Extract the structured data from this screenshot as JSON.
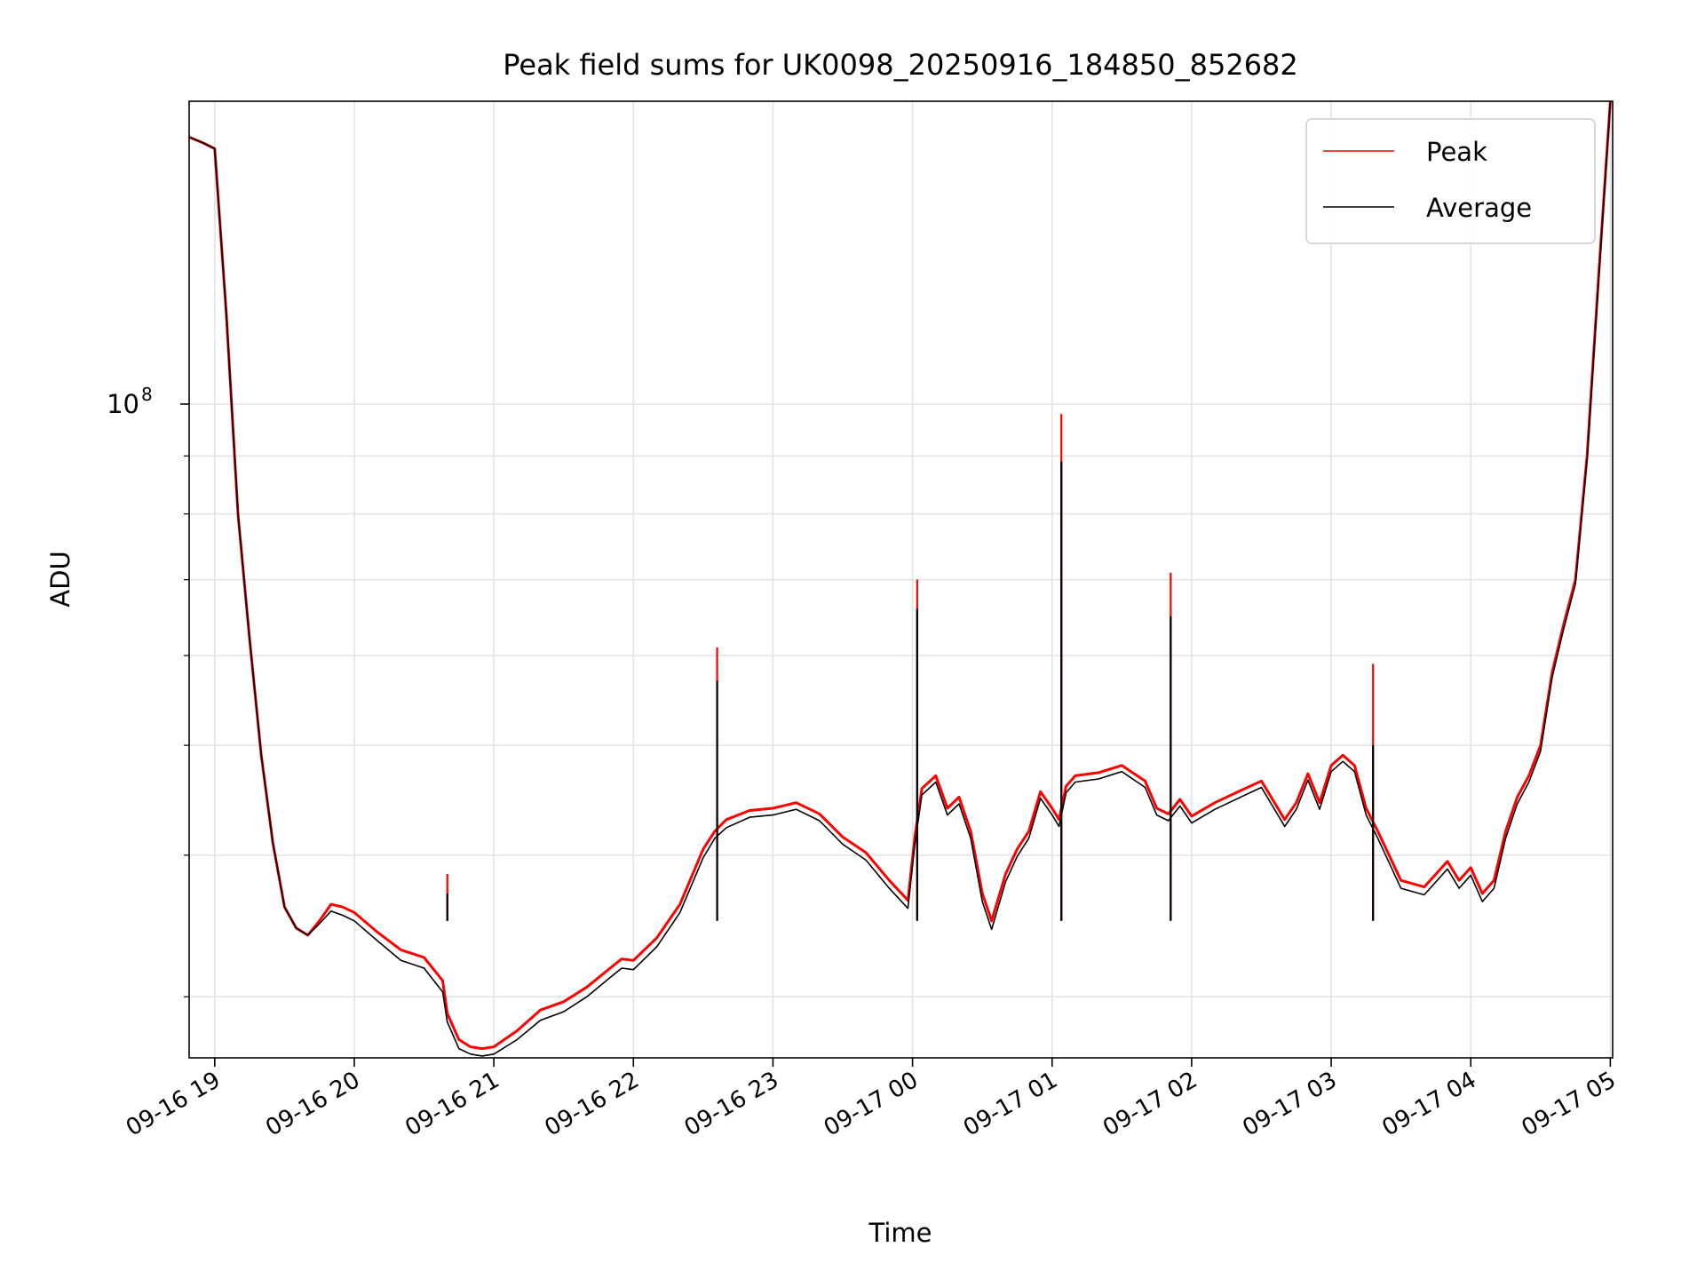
{
  "chart_data": {
    "type": "line",
    "title": "Peak field sums for UK0098_20250916_184850_852682",
    "xlabel": "Time",
    "ylabel": "ADU",
    "y_scale": "log",
    "grid": true,
    "legend_position": "top-right",
    "xlim": [
      "2025-09-16 18:49",
      "2025-09-17 05:01"
    ],
    "ylim": [
      26500000,
      185000000
    ],
    "x_ticks": [
      {
        "value": "2025-09-16 19:00",
        "label": "09-16 19"
      },
      {
        "value": "2025-09-16 20:00",
        "label": "09-16 20"
      },
      {
        "value": "2025-09-16 21:00",
        "label": "09-16 21"
      },
      {
        "value": "2025-09-16 22:00",
        "label": "09-16 22"
      },
      {
        "value": "2025-09-16 23:00",
        "label": "09-16 23"
      },
      {
        "value": "2025-09-17 00:00",
        "label": "09-17 00"
      },
      {
        "value": "2025-09-17 01:00",
        "label": "09-17 01"
      },
      {
        "value": "2025-09-17 02:00",
        "label": "09-17 02"
      },
      {
        "value": "2025-09-17 03:00",
        "label": "09-17 03"
      },
      {
        "value": "2025-09-17 04:00",
        "label": "09-17 04"
      },
      {
        "value": "2025-09-17 05:00",
        "label": "09-17 05"
      }
    ],
    "y_major_ticks": [
      {
        "value": 100000000,
        "label_base": "10",
        "label_exp": "8"
      }
    ],
    "y_minor_ticks": [
      30000000,
      40000000,
      50000000,
      60000000,
      70000000,
      80000000,
      90000000
    ],
    "series": [
      {
        "name": "Peak",
        "color": "#ff0000",
        "x": [
          "2025-09-16 18:49",
          "2025-09-16 18:55",
          "2025-09-16 19:00",
          "2025-09-16 19:05",
          "2025-09-16 19:10",
          "2025-09-16 19:15",
          "2025-09-16 19:20",
          "2025-09-16 19:25",
          "2025-09-16 19:30",
          "2025-09-16 19:35",
          "2025-09-16 19:40",
          "2025-09-16 19:45",
          "2025-09-16 19:50",
          "2025-09-16 19:55",
          "2025-09-16 20:00",
          "2025-09-16 20:10",
          "2025-09-16 20:20",
          "2025-09-16 20:30",
          "2025-09-16 20:38",
          "2025-09-16 20:40",
          "2025-09-16 20:45",
          "2025-09-16 20:50",
          "2025-09-16 20:55",
          "2025-09-16 21:00",
          "2025-09-16 21:10",
          "2025-09-16 21:20",
          "2025-09-16 21:30",
          "2025-09-16 21:40",
          "2025-09-16 21:50",
          "2025-09-16 21:55",
          "2025-09-16 22:00",
          "2025-09-16 22:10",
          "2025-09-16 22:20",
          "2025-09-16 22:30",
          "2025-09-16 22:35",
          "2025-09-16 22:40",
          "2025-09-16 22:50",
          "2025-09-16 23:00",
          "2025-09-16 23:10",
          "2025-09-16 23:20",
          "2025-09-16 23:30",
          "2025-09-16 23:40",
          "2025-09-16 23:50",
          "2025-09-16 23:58",
          "2025-09-17 00:01",
          "2025-09-17 00:04",
          "2025-09-17 00:10",
          "2025-09-17 00:15",
          "2025-09-17 00:20",
          "2025-09-17 00:25",
          "2025-09-17 00:30",
          "2025-09-17 00:34",
          "2025-09-17 00:40",
          "2025-09-17 00:45",
          "2025-09-17 00:50",
          "2025-09-17 00:55",
          "2025-09-17 01:00",
          "2025-09-17 01:03",
          "2025-09-17 01:06",
          "2025-09-17 01:10",
          "2025-09-17 01:20",
          "2025-09-17 01:30",
          "2025-09-17 01:40",
          "2025-09-17 01:45",
          "2025-09-17 01:50",
          "2025-09-17 01:55",
          "2025-09-17 02:00",
          "2025-09-17 02:10",
          "2025-09-17 02:20",
          "2025-09-17 02:30",
          "2025-09-17 02:40",
          "2025-09-17 02:45",
          "2025-09-17 02:50",
          "2025-09-17 02:55",
          "2025-09-17 03:00",
          "2025-09-17 03:05",
          "2025-09-17 03:10",
          "2025-09-17 03:15",
          "2025-09-17 03:20",
          "2025-09-17 03:30",
          "2025-09-17 03:40",
          "2025-09-17 03:50",
          "2025-09-17 03:55",
          "2025-09-17 04:00",
          "2025-09-17 04:05",
          "2025-09-17 04:10",
          "2025-09-17 04:15",
          "2025-09-17 04:20",
          "2025-09-17 04:25",
          "2025-09-17 04:30",
          "2025-09-17 04:35",
          "2025-09-17 04:40",
          "2025-09-17 04:45",
          "2025-09-17 04:50",
          "2025-09-17 04:55",
          "2025-09-17 05:00"
        ],
        "y": [
          172000000,
          170000000,
          168000000,
          120000000,
          80000000,
          62000000,
          49000000,
          41000000,
          36000000,
          34500000,
          34000000,
          35000000,
          36200000,
          36000000,
          35600000,
          34200000,
          33000000,
          32500000,
          31000000,
          29000000,
          27500000,
          27100000,
          27000000,
          27100000,
          28000000,
          29200000,
          29700000,
          30600000,
          31800000,
          32400000,
          32300000,
          33800000,
          36200000,
          40500000,
          42000000,
          43000000,
          43800000,
          44000000,
          44500000,
          43500000,
          41500000,
          40200000,
          38000000,
          36500000,
          41500000,
          45800000,
          47000000,
          44000000,
          45000000,
          42000000,
          37000000,
          35000000,
          38500000,
          40500000,
          42000000,
          45500000,
          44000000,
          43000000,
          46000000,
          47000000,
          47300000,
          48000000,
          46500000,
          44000000,
          43500000,
          44800000,
          43300000,
          44500000,
          45500000,
          46500000,
          43000000,
          44500000,
          47200000,
          44500000,
          48000000,
          49000000,
          48000000,
          44000000,
          42000000,
          38000000,
          37500000,
          39500000,
          38000000,
          39000000,
          37000000,
          38000000,
          42000000,
          45000000,
          47000000,
          50000000,
          58000000,
          64000000,
          70000000,
          90000000,
          130000000,
          185000000
        ]
      },
      {
        "name": "Average",
        "color": "#000000",
        "x": [
          "2025-09-16 18:49",
          "2025-09-16 18:55",
          "2025-09-16 19:00",
          "2025-09-16 19:05",
          "2025-09-16 19:10",
          "2025-09-16 19:15",
          "2025-09-16 19:20",
          "2025-09-16 19:25",
          "2025-09-16 19:30",
          "2025-09-16 19:35",
          "2025-09-16 19:40",
          "2025-09-16 19:45",
          "2025-09-16 19:50",
          "2025-09-16 19:55",
          "2025-09-16 20:00",
          "2025-09-16 20:10",
          "2025-09-16 20:20",
          "2025-09-16 20:30",
          "2025-09-16 20:38",
          "2025-09-16 20:40",
          "2025-09-16 20:45",
          "2025-09-16 20:50",
          "2025-09-16 20:55",
          "2025-09-16 21:00",
          "2025-09-16 21:10",
          "2025-09-16 21:20",
          "2025-09-16 21:30",
          "2025-09-16 21:40",
          "2025-09-16 21:50",
          "2025-09-16 21:55",
          "2025-09-16 22:00",
          "2025-09-16 22:10",
          "2025-09-16 22:20",
          "2025-09-16 22:30",
          "2025-09-16 22:35",
          "2025-09-16 22:40",
          "2025-09-16 22:50",
          "2025-09-16 23:00",
          "2025-09-16 23:10",
          "2025-09-16 23:20",
          "2025-09-16 23:30",
          "2025-09-16 23:40",
          "2025-09-16 23:50",
          "2025-09-16 23:58",
          "2025-09-17 00:01",
          "2025-09-17 00:04",
          "2025-09-17 00:10",
          "2025-09-17 00:15",
          "2025-09-17 00:20",
          "2025-09-17 00:25",
          "2025-09-17 00:30",
          "2025-09-17 00:34",
          "2025-09-17 00:40",
          "2025-09-17 00:45",
          "2025-09-17 00:50",
          "2025-09-17 00:55",
          "2025-09-17 01:00",
          "2025-09-17 01:03",
          "2025-09-17 01:06",
          "2025-09-17 01:10",
          "2025-09-17 01:20",
          "2025-09-17 01:30",
          "2025-09-17 01:40",
          "2025-09-17 01:45",
          "2025-09-17 01:50",
          "2025-09-17 01:55",
          "2025-09-17 02:00",
          "2025-09-17 02:10",
          "2025-09-17 02:20",
          "2025-09-17 02:30",
          "2025-09-17 02:40",
          "2025-09-17 02:45",
          "2025-09-17 02:50",
          "2025-09-17 02:55",
          "2025-09-17 03:00",
          "2025-09-17 03:05",
          "2025-09-17 03:10",
          "2025-09-17 03:15",
          "2025-09-17 03:20",
          "2025-09-17 03:30",
          "2025-09-17 03:40",
          "2025-09-17 03:50",
          "2025-09-17 03:55",
          "2025-09-17 04:00",
          "2025-09-17 04:05",
          "2025-09-17 04:10",
          "2025-09-17 04:15",
          "2025-09-17 04:20",
          "2025-09-17 04:25",
          "2025-09-17 04:30",
          "2025-09-17 04:35",
          "2025-09-17 04:40",
          "2025-09-17 04:45",
          "2025-09-17 04:50",
          "2025-09-17 04:55",
          "2025-09-17 05:00"
        ],
        "y": [
          172000000,
          170000000,
          168000000,
          120000000,
          80000000,
          62000000,
          49000000,
          41000000,
          36000000,
          34500000,
          34000000,
          34800000,
          35700000,
          35400000,
          35000000,
          33600000,
          32300000,
          31800000,
          30300000,
          28500000,
          27000000,
          26700000,
          26600000,
          26700000,
          27500000,
          28600000,
          29100000,
          30000000,
          31200000,
          31800000,
          31700000,
          33200000,
          35600000,
          39800000,
          41400000,
          42300000,
          43200000,
          43400000,
          43900000,
          42900000,
          40900000,
          39600000,
          37400000,
          35900000,
          40900000,
          45200000,
          46400000,
          43400000,
          44400000,
          41400000,
          36400000,
          34400000,
          37900000,
          39900000,
          41400000,
          44900000,
          43400000,
          42400000,
          45400000,
          46400000,
          46700000,
          47400000,
          45900000,
          43400000,
          42900000,
          44200000,
          42700000,
          43900000,
          44900000,
          45900000,
          42400000,
          43900000,
          46600000,
          43900000,
          47400000,
          48400000,
          47400000,
          43400000,
          41400000,
          37400000,
          36900000,
          38900000,
          37400000,
          38400000,
          36400000,
          37400000,
          41400000,
          44400000,
          46400000,
          49400000,
          57400000,
          63400000,
          69400000,
          89400000,
          129000000,
          185000000
        ]
      }
    ],
    "spikes": [
      {
        "time": "2025-09-16 20:40",
        "peak": 38500000,
        "average": 37000000
      },
      {
        "time": "2025-09-16 22:36",
        "peak": 61000000,
        "average": 57000000
      },
      {
        "time": "2025-09-17 00:02",
        "peak": 70000000,
        "average": 66000000
      },
      {
        "time": "2025-09-17 01:04",
        "peak": 98000000,
        "average": 89000000
      },
      {
        "time": "2025-09-17 01:51",
        "peak": 71000000,
        "average": 65000000
      },
      {
        "time": "2025-09-17 03:18",
        "peak": 59000000,
        "average": 50000000
      }
    ]
  }
}
